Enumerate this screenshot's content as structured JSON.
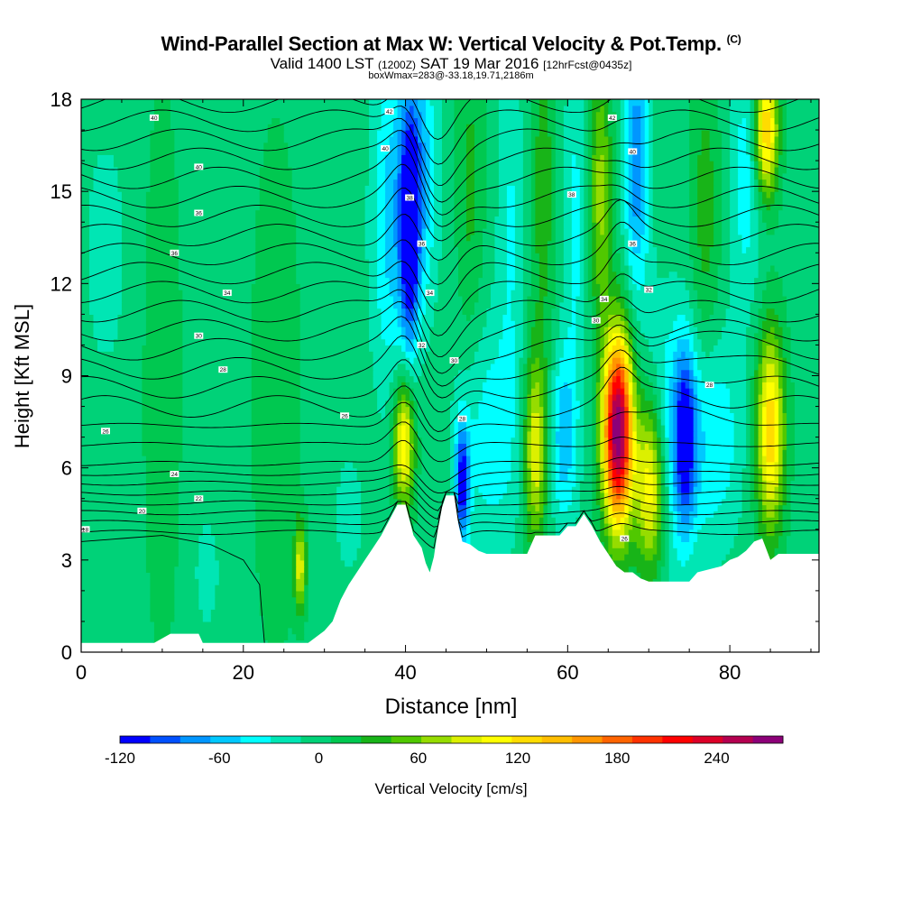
{
  "header": {
    "title": "Wind-Parallel Section at Max W: Vertical Velocity & Pot.Temp.",
    "copyright": "(C)",
    "valid_prefix": "Valid 1400 LST",
    "valid_utc": "(1200Z)",
    "valid_date": "SAT 19 Mar 2016",
    "forecast": "[12hrFcst@0435z]",
    "box_info": "boxWmax=283@-33.18,19.71,2186m"
  },
  "chart_data": {
    "type": "heatmap",
    "xlabel": "Distance [nm]",
    "ylabel": "Height [Kft MSL]",
    "xlim": [
      0,
      91
    ],
    "ylim": [
      0,
      18
    ],
    "x_ticks": [
      0,
      20,
      40,
      60,
      80
    ],
    "y_ticks": [
      0,
      3,
      6,
      9,
      12,
      15,
      18
    ],
    "colorbar": {
      "label": "Vertical Velocity [cm/s]",
      "range": [
        -120,
        280
      ],
      "ticks": [
        -120,
        -60,
        0,
        60,
        120,
        180,
        240
      ],
      "colors": [
        "#0000ff",
        "#0050ff",
        "#0096ff",
        "#00c8ff",
        "#00ffff",
        "#00e6b4",
        "#00d278",
        "#00c850",
        "#18b418",
        "#50c800",
        "#96dc00",
        "#dcf000",
        "#ffff00",
        "#ffdc00",
        "#ffbe00",
        "#ff9600",
        "#ff6400",
        "#ff3200",
        "#ff0000",
        "#dc0028",
        "#b40050",
        "#8c0078"
      ]
    },
    "background_value_cm_s": 0,
    "velocity_features": [
      {
        "x": 38.0,
        "z": 14.0,
        "w": -50,
        "sx": 1.6,
        "sz": 4.0
      },
      {
        "x": 40.5,
        "z": 13.5,
        "w": -110,
        "sx": 0.8,
        "sz": 2.6
      },
      {
        "x": 41.5,
        "z": 15.5,
        "w": -70,
        "sx": 1.6,
        "sz": 3.0
      },
      {
        "x": 39.8,
        "z": 6.8,
        "w": 120,
        "sx": 0.9,
        "sz": 1.5
      },
      {
        "x": 47.0,
        "z": 5.5,
        "w": -110,
        "sx": 0.6,
        "sz": 1.4
      },
      {
        "x": 50.5,
        "z": 7.0,
        "w": -40,
        "sx": 3.0,
        "sz": 2.8
      },
      {
        "x": 56.0,
        "z": 6.6,
        "w": 100,
        "sx": 1.0,
        "sz": 2.2
      },
      {
        "x": 59.5,
        "z": 7.0,
        "w": -60,
        "sx": 1.2,
        "sz": 2.0
      },
      {
        "x": 66.2,
        "z": 7.2,
        "w": 283,
        "sx": 1.3,
        "sz": 2.2
      },
      {
        "x": 70.2,
        "z": 5.5,
        "w": 130,
        "sx": 1.3,
        "sz": 2.0
      },
      {
        "x": 72.5,
        "z": 7.0,
        "w": -50,
        "sx": 2.5,
        "sz": 3.0
      },
      {
        "x": 74.5,
        "z": 7.0,
        "w": -90,
        "sx": 0.9,
        "sz": 2.0
      },
      {
        "x": 78.0,
        "z": 7.0,
        "w": -45,
        "sx": 2.5,
        "sz": 2.5
      },
      {
        "x": 85.0,
        "z": 7.2,
        "w": 130,
        "sx": 1.2,
        "sz": 2.3
      },
      {
        "x": 68.5,
        "z": 16.0,
        "w": -80,
        "sx": 1.1,
        "sz": 3.0
      },
      {
        "x": 64.0,
        "z": 15.0,
        "w": 70,
        "sx": 1.0,
        "sz": 3.0
      },
      {
        "x": 84.5,
        "z": 17.0,
        "w": 140,
        "sx": 1.0,
        "sz": 1.5
      },
      {
        "x": 82.0,
        "z": 15.5,
        "w": -40,
        "sx": 1.5,
        "sz": 3.0
      },
      {
        "x": 48.0,
        "z": 15.0,
        "w": 30,
        "sx": 1.2,
        "sz": 4.0
      },
      {
        "x": 53.0,
        "z": 14.5,
        "w": -30,
        "sx": 1.2,
        "sz": 4.0
      },
      {
        "x": 57.0,
        "z": 15.0,
        "w": 35,
        "sx": 1.2,
        "sz": 4.0
      },
      {
        "x": 61.0,
        "z": 14.0,
        "w": -35,
        "sx": 1.2,
        "sz": 4.0
      },
      {
        "x": 77.0,
        "z": 14.0,
        "w": 35,
        "sx": 1.3,
        "sz": 4.0
      },
      {
        "x": 27.0,
        "z": 2.8,
        "w": 90,
        "sx": 0.5,
        "sz": 1.0
      },
      {
        "x": 15.5,
        "z": 2.6,
        "w": -25,
        "sx": 1.0,
        "sz": 1.2
      },
      {
        "x": 33.0,
        "z": 4.5,
        "w": -25,
        "sx": 1.2,
        "sz": 1.3
      },
      {
        "x": 10.0,
        "z": 9.0,
        "w": 25,
        "sx": 1.5,
        "sz": 6.0
      },
      {
        "x": 24.0,
        "z": 8.5,
        "w": 22,
        "sx": 2.0,
        "sz": 6.0
      },
      {
        "x": 3.0,
        "z": 13.0,
        "w": -20,
        "sx": 2.0,
        "sz": 3.0
      }
    ],
    "terrain": [
      [
        0,
        0.3
      ],
      [
        9,
        0.3
      ],
      [
        11,
        0.6
      ],
      [
        14.5,
        0.6
      ],
      [
        15,
        0.3
      ],
      [
        21,
        0.3
      ],
      [
        28,
        0.3
      ],
      [
        30,
        0.7
      ],
      [
        31,
        1.0
      ],
      [
        32,
        1.7
      ],
      [
        33,
        2.2
      ],
      [
        34,
        2.6
      ],
      [
        35,
        3.0
      ],
      [
        36,
        3.4
      ],
      [
        37,
        3.8
      ],
      [
        38,
        4.3
      ],
      [
        39,
        4.8
      ],
      [
        40,
        4.8
      ],
      [
        40.5,
        4.3
      ],
      [
        41,
        3.8
      ],
      [
        42,
        3.4
      ],
      [
        42.5,
        2.9
      ],
      [
        43,
        2.6
      ],
      [
        43.5,
        3.1
      ],
      [
        44,
        4.0
      ],
      [
        44.5,
        4.7
      ],
      [
        45,
        5.1
      ],
      [
        46,
        5.1
      ],
      [
        46.5,
        4.2
      ],
      [
        47,
        3.6
      ],
      [
        48,
        3.5
      ],
      [
        49,
        3.3
      ],
      [
        50,
        3.2
      ],
      [
        55,
        3.2
      ],
      [
        56,
        3.8
      ],
      [
        59,
        3.8
      ],
      [
        60,
        4.1
      ],
      [
        61,
        4.1
      ],
      [
        62,
        4.5
      ],
      [
        63,
        4.1
      ],
      [
        64,
        3.6
      ],
      [
        65,
        3.2
      ],
      [
        66,
        2.8
      ],
      [
        67,
        2.6
      ],
      [
        68,
        2.6
      ],
      [
        69,
        2.4
      ],
      [
        70,
        2.3
      ],
      [
        75,
        2.3
      ],
      [
        76,
        2.6
      ],
      [
        79,
        2.8
      ],
      [
        80,
        3.0
      ],
      [
        81,
        3.1
      ],
      [
        82,
        3.3
      ],
      [
        83,
        3.6
      ],
      [
        84,
        3.7
      ],
      [
        85,
        3.0
      ],
      [
        86,
        3.2
      ],
      [
        91,
        3.2
      ]
    ],
    "theta_contour_labels": [
      {
        "x": 9,
        "z": 17.4,
        "text": "40"
      },
      {
        "x": 14.5,
        "z": 15.8,
        "text": "40"
      },
      {
        "x": 14.5,
        "z": 14.3,
        "text": "36"
      },
      {
        "x": 11.5,
        "z": 13.0,
        "text": "36"
      },
      {
        "x": 18,
        "z": 11.7,
        "text": "34"
      },
      {
        "x": 14.5,
        "z": 10.3,
        "text": "30"
      },
      {
        "x": 17.5,
        "z": 9.2,
        "text": "28"
      },
      {
        "x": 3,
        "z": 7.2,
        "text": "26"
      },
      {
        "x": 11.5,
        "z": 5.8,
        "text": "24"
      },
      {
        "x": 14.5,
        "z": 5.0,
        "text": "22"
      },
      {
        "x": 7.5,
        "z": 4.6,
        "text": "20"
      },
      {
        "x": 0.5,
        "z": 4.0,
        "text": "18"
      },
      {
        "x": 38,
        "z": 17.6,
        "text": "42"
      },
      {
        "x": 37.5,
        "z": 16.4,
        "text": "40"
      },
      {
        "x": 40.5,
        "z": 14.8,
        "text": "38"
      },
      {
        "x": 42,
        "z": 13.3,
        "text": "36"
      },
      {
        "x": 43,
        "z": 11.7,
        "text": "34"
      },
      {
        "x": 42,
        "z": 10.0,
        "text": "32"
      },
      {
        "x": 46,
        "z": 9.5,
        "text": "30"
      },
      {
        "x": 47,
        "z": 7.6,
        "text": "28"
      },
      {
        "x": 32.5,
        "z": 7.7,
        "text": "26"
      },
      {
        "x": 65.5,
        "z": 17.4,
        "text": "42"
      },
      {
        "x": 68,
        "z": 16.3,
        "text": "40"
      },
      {
        "x": 60.5,
        "z": 14.9,
        "text": "38"
      },
      {
        "x": 68,
        "z": 13.3,
        "text": "36"
      },
      {
        "x": 64.5,
        "z": 11.5,
        "text": "34"
      },
      {
        "x": 70,
        "z": 11.8,
        "text": "32"
      },
      {
        "x": 63.5,
        "z": 10.8,
        "text": "30"
      },
      {
        "x": 77.5,
        "z": 8.7,
        "text": "28"
      },
      {
        "x": 67,
        "z": 3.7,
        "text": "26"
      }
    ]
  }
}
